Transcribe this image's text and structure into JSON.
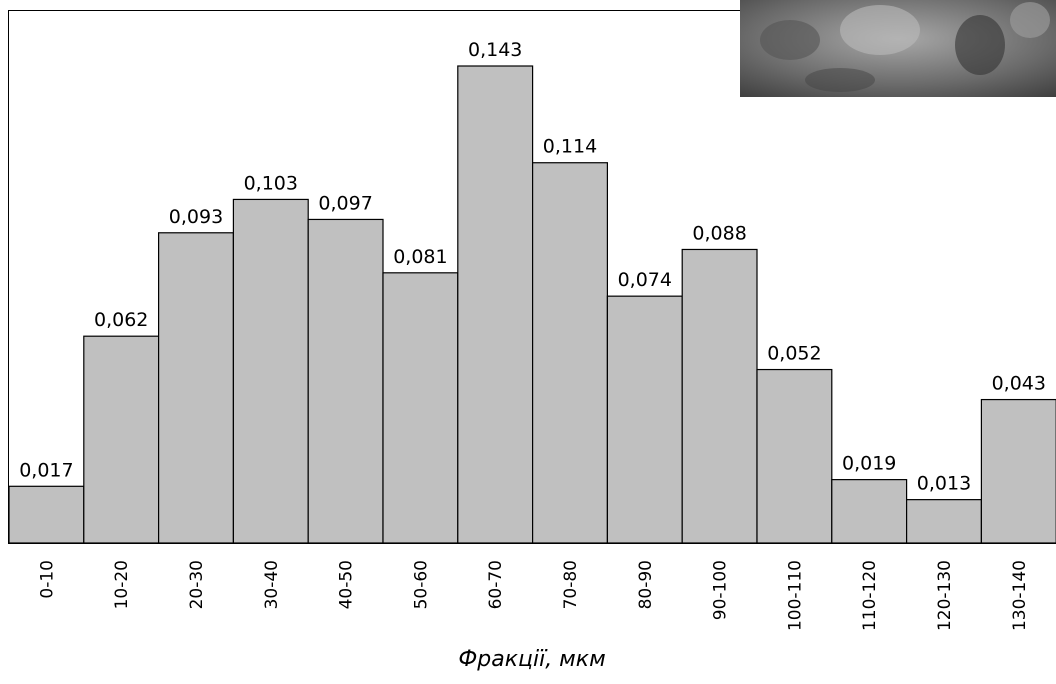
{
  "chart_data": {
    "type": "bar",
    "x_label": "Фракції, мкм",
    "categories": [
      "0-10",
      "10-20",
      "20-30",
      "30-40",
      "40-50",
      "50-60",
      "60-70",
      "70-80",
      "80-90",
      "90-100",
      "100-110",
      "110-120",
      "120-130",
      "130-140"
    ],
    "values": [
      0.017,
      0.062,
      0.093,
      0.103,
      0.097,
      0.081,
      0.143,
      0.114,
      0.074,
      0.088,
      0.052,
      0.019,
      0.013,
      0.043
    ],
    "value_labels": [
      "0,017",
      "0,062",
      "0,093",
      "0,103",
      "0,097",
      "0,081",
      "0,143",
      "0,114",
      "0,074",
      "0,088",
      "0,052",
      "0,019",
      "0,013",
      "0,043"
    ],
    "color": "#c0c0c0"
  }
}
